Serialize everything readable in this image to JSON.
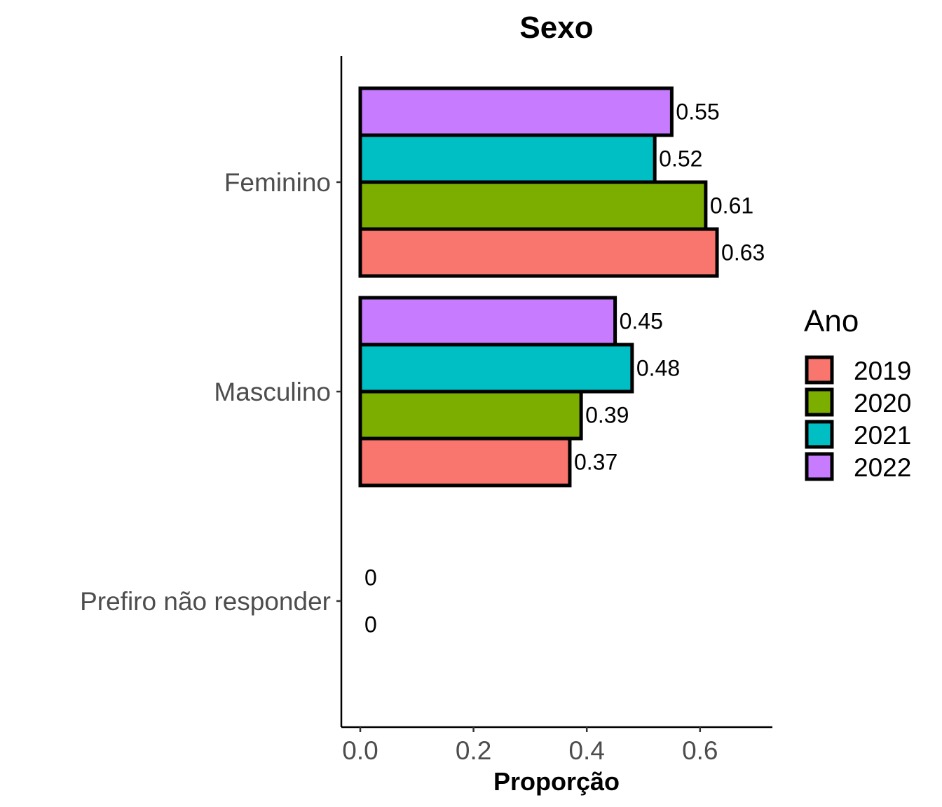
{
  "chart_data": {
    "type": "bar",
    "orientation": "horizontal",
    "title": "Sexo",
    "xlabel": "Proporção",
    "ylabel": "",
    "categories": [
      "Feminino",
      "Masculino",
      "Prefiro não responder"
    ],
    "xlim": [
      0,
      0.7
    ],
    "x_ticks": [
      "0.0",
      "0.2",
      "0.4",
      "0.6"
    ],
    "grid": false,
    "legend": {
      "title": "Ano",
      "placement": "right"
    },
    "series": [
      {
        "name": "2019",
        "color": "#F8766D",
        "values": [
          0.63,
          0.37,
          null
        ]
      },
      {
        "name": "2020",
        "color": "#7CAE00",
        "values": [
          0.61,
          0.39,
          0
        ]
      },
      {
        "name": "2021",
        "color": "#00BFC4",
        "values": [
          0.52,
          0.48,
          0
        ]
      },
      {
        "name": "2022",
        "color": "#C77CFF",
        "values": [
          0.55,
          0.45,
          null
        ]
      }
    ],
    "data_labels": [
      [
        "0.63",
        "0.37",
        ""
      ],
      [
        "0.61",
        "0.39",
        "0"
      ],
      [
        "0.52",
        "0.48",
        "0"
      ],
      [
        "0.55",
        "0.45",
        ""
      ]
    ]
  }
}
